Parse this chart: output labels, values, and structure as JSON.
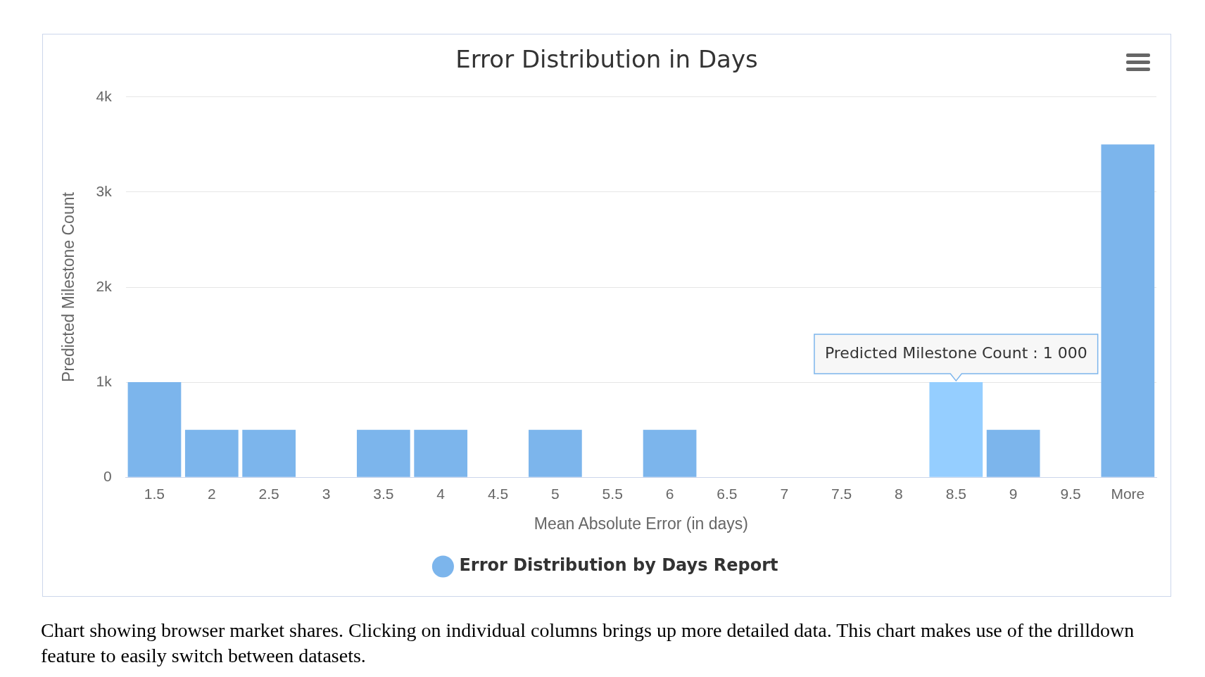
{
  "chart_data": {
    "type": "bar",
    "title": "Error Distribution in Days",
    "xlabel": "Mean Absolute Error (in days)",
    "ylabel": "Predicted Milestone Count",
    "categories": [
      "1.5",
      "2",
      "2.5",
      "3",
      "3.5",
      "4",
      "4.5",
      "5",
      "5.5",
      "6",
      "6.5",
      "7",
      "7.5",
      "8",
      "8.5",
      "9",
      "9.5",
      "More"
    ],
    "series": [
      {
        "name": "Error Distribution by Days Report",
        "color": "#7cb5ec",
        "colors": [
          "#7cb5ec",
          "#7cb5ec",
          "#7cb5ec",
          "#7cb5ec",
          "#7cb5ec",
          "#7cb5ec",
          "#7cb5ec",
          "#7cb5ec",
          "#7cb5ec",
          "#7cb5ec",
          "#7cb5ec",
          "#7cb5ec",
          "#7cb5ec",
          "#7cb5ec",
          "#95ceff",
          "#7cb5ec",
          "#7cb5ec",
          "#7cb5ec"
        ],
        "values": [
          1000,
          500,
          500,
          0,
          500,
          500,
          0,
          500,
          0,
          500,
          0,
          0,
          0,
          0,
          1000,
          500,
          0,
          3500
        ]
      }
    ],
    "ylim": [
      0,
      4000
    ],
    "yticks": [
      0,
      {
        "value": 1000,
        "label": "1k"
      },
      {
        "value": 2000,
        "label": "2k"
      },
      {
        "value": 3000,
        "label": "3k"
      },
      {
        "value": 4000,
        "label": "4k"
      }
    ],
    "grid": "y",
    "legend": "bottom",
    "annotations": [
      {
        "text": "Predicted Milestone Count : 1 000",
        "x": "8.5",
        "y": 1000
      },
      "Chart showing browser market shares. Clicking on individual columns brings up more detailed data. This chart makes use of the drilldown feature to easily switch between datasets."
    ]
  }
}
